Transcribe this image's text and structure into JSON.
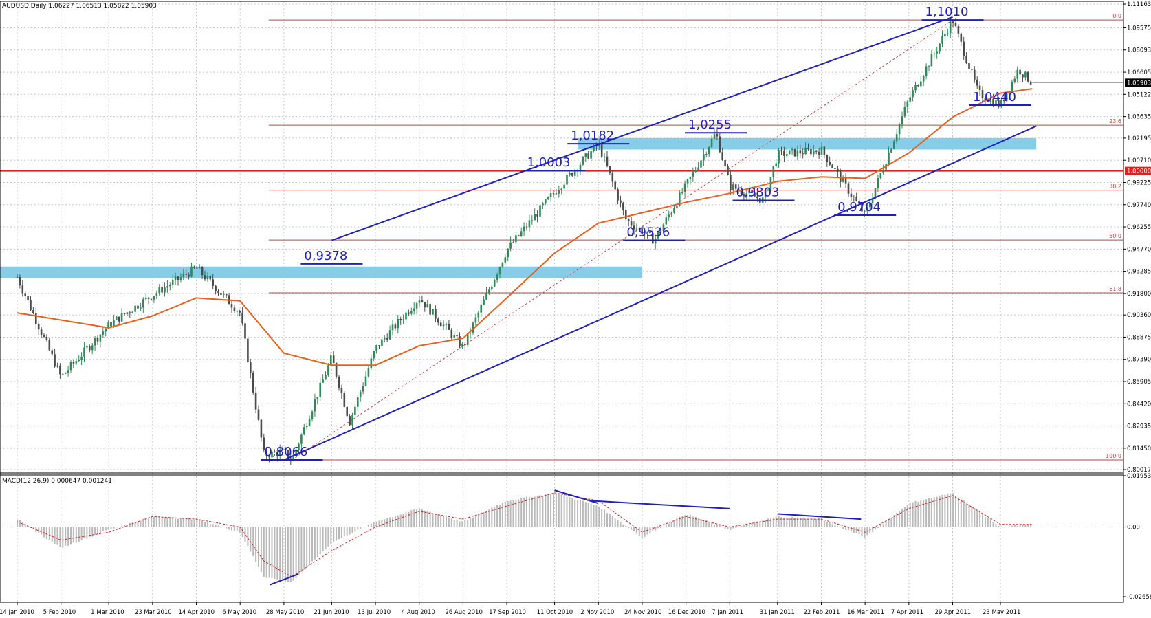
{
  "header": {
    "symbol_info": "AUDUSD,Daily  1.06227 1.06513 1.05822 1.05903",
    "macd_info": "MACD(12,26,9) 0.000647 0.001241"
  },
  "colors": {
    "bull_candle": "#2e8b57",
    "bear_candle": "#4b4b4b",
    "moving_average": "#e8601c",
    "channel": "#1f1fbf",
    "zone": "#87cde8",
    "fib": "#c84040",
    "parity": "#e02020",
    "macd_hist": "#b9b9b9",
    "macd_signal": "#d02020",
    "annotation": "#1f1fbf"
  },
  "chart_data": [
    {
      "type": "candlestick",
      "title": "",
      "instrument": "AUDUSD",
      "timeframe": "Daily",
      "last_bar": {
        "open": 1.06227,
        "high": 1.06513,
        "low": 1.05822,
        "close": 1.05903
      },
      "ylim": [
        0.80017,
        1.11163
      ],
      "y_tick_labels": [
        "1.11163",
        "1.09575",
        "1.08093",
        "1.06605",
        "1.05122",
        "1.03635",
        "1.02195",
        "1.00710",
        "0.99225",
        "0.97740",
        "0.96255",
        "0.94770",
        "0.93285",
        "0.91800",
        "0.90360",
        "0.88875",
        "0.87390",
        "0.85905",
        "0.84420",
        "0.82935",
        "0.81450",
        "0.80017"
      ],
      "current_price_label": "1.05903",
      "x_tick_labels": [
        "14 Jan 2010",
        "5 Feb 2010",
        "1 Mar 2010",
        "23 Mar 2010",
        "14 Apr 2010",
        "6 May 2010",
        "28 May 2010",
        "21 Jun 2010",
        "13 Jul 2010",
        "4 Aug 2010",
        "26 Aug 2010",
        "17 Sep 2010",
        "11 Oct 2010",
        "2 Nov 2010",
        "24 Nov 2010",
        "16 Dec 2010",
        "7 Jan 2011",
        "31 Jan 2011",
        "22 Feb 2011",
        "16 Mar 2011",
        "7 Apr 2011",
        "29 Apr 2011",
        "23 May 2011"
      ],
      "trend_path": [
        {
          "date": "14 Jan 2010",
          "price": 0.929
        },
        {
          "date": "5 Feb 2010",
          "price": 0.862
        },
        {
          "date": "1 Mar 2010",
          "price": 0.897
        },
        {
          "date": "23 Mar 2010",
          "price": 0.917
        },
        {
          "date": "14 Apr 2010",
          "price": 0.935
        },
        {
          "date": "6 May 2010",
          "price": 0.905
        },
        {
          "date": "18 May 2010",
          "price": 0.81
        },
        {
          "date": "28 May 2010",
          "price": 0.812
        },
        {
          "date": "1 Jun 2010",
          "price": 0.8066
        },
        {
          "date": "21 Jun 2010",
          "price": 0.875
        },
        {
          "date": "30 Jun 2010",
          "price": 0.832
        },
        {
          "date": "13 Jul 2010",
          "price": 0.881
        },
        {
          "date": "4 Aug 2010",
          "price": 0.915
        },
        {
          "date": "26 Aug 2010",
          "price": 0.882
        },
        {
          "date": "17 Sep 2010",
          "price": 0.947
        },
        {
          "date": "11 Oct 2010",
          "price": 0.986
        },
        {
          "date": "2 Nov 2010",
          "price": 1.0182
        },
        {
          "date": "16 Nov 2010",
          "price": 0.967
        },
        {
          "date": "30 Nov 2010",
          "price": 0.9536
        },
        {
          "date": "16 Dec 2010",
          "price": 0.99
        },
        {
          "date": "31 Dec 2010",
          "price": 1.0255
        },
        {
          "date": "7 Jan 2011",
          "price": 0.99
        },
        {
          "date": "24 Jan 2011",
          "price": 0.9803
        },
        {
          "date": "31 Jan 2011",
          "price": 1.011
        },
        {
          "date": "22 Feb 2011",
          "price": 1.014
        },
        {
          "date": "16 Mar 2011",
          "price": 0.9704
        },
        {
          "date": "7 Apr 2011",
          "price": 1.048
        },
        {
          "date": "29 Apr 2011",
          "price": 1.101
        },
        {
          "date": "12 May 2011",
          "price": 1.052
        },
        {
          "date": "23 May 2011",
          "price": 1.044
        },
        {
          "date": "1 Jun 2011",
          "price": 1.068
        },
        {
          "date": "8 Jun 2011",
          "price": 1.05903
        }
      ],
      "moving_average": [
        {
          "date": "14 Jan 2010",
          "price": 0.905
        },
        {
          "date": "1 Mar 2010",
          "price": 0.895
        },
        {
          "date": "23 Mar 2010",
          "price": 0.903
        },
        {
          "date": "14 Apr 2010",
          "price": 0.915
        },
        {
          "date": "6 May 2010",
          "price": 0.913
        },
        {
          "date": "28 May 2010",
          "price": 0.878
        },
        {
          "date": "21 Jun 2010",
          "price": 0.87
        },
        {
          "date": "13 Jul 2010",
          "price": 0.87
        },
        {
          "date": "4 Aug 2010",
          "price": 0.883
        },
        {
          "date": "26 Aug 2010",
          "price": 0.888
        },
        {
          "date": "17 Sep 2010",
          "price": 0.915
        },
        {
          "date": "11 Oct 2010",
          "price": 0.945
        },
        {
          "date": "2 Nov 2010",
          "price": 0.965
        },
        {
          "date": "24 Nov 2010",
          "price": 0.972
        },
        {
          "date": "16 Dec 2010",
          "price": 0.979
        },
        {
          "date": "7 Jan 2011",
          "price": 0.985
        },
        {
          "date": "31 Jan 2011",
          "price": 0.993
        },
        {
          "date": "22 Feb 2011",
          "price": 0.996
        },
        {
          "date": "16 Mar 2011",
          "price": 0.995
        },
        {
          "date": "7 Apr 2011",
          "price": 1.012
        },
        {
          "date": "29 Apr 2011",
          "price": 1.036
        },
        {
          "date": "23 May 2011",
          "price": 1.052
        },
        {
          "date": "8 Jun 2011",
          "price": 1.055
        }
      ],
      "fibonacci": [
        {
          "level": "0.0",
          "price": 1.101
        },
        {
          "level": "23.6",
          "price": 1.0306
        },
        {
          "level": "38.2",
          "price": 0.9871
        },
        {
          "level": "50.0",
          "price": 0.9538
        },
        {
          "level": "61.8",
          "price": 0.9184
        },
        {
          "level": "100.0",
          "price": 0.8066
        }
      ],
      "parity_line": {
        "price": 1.0,
        "label": "1.00000"
      },
      "zones": [
        {
          "from": "14 Jan 2010",
          "to": "24 Nov 2010",
          "low": 0.932,
          "high": 0.936
        },
        {
          "from": "2 Nov 2010",
          "to": "10 Jun 2011",
          "low": 1.018,
          "high": 1.022
        }
      ],
      "channel_lines": [
        {
          "from": {
            "date": "28 May 2010",
            "price": 0.8066
          },
          "to": {
            "date": "10 Jun 2011",
            "price": 1.03
          }
        },
        {
          "from": {
            "date": "21 Jun 2010",
            "price": 0.9535
          },
          "to": {
            "date": "29 Apr 2011",
            "price": 1.103
          }
        }
      ],
      "annotations": [
        {
          "text": "1,1010",
          "date": "29 Apr 2011",
          "price": 1.101
        },
        {
          "text": "1,0255",
          "date": "31 Dec 2010",
          "price": 1.0255
        },
        {
          "text": "1,0182",
          "date": "2 Nov 2010",
          "price": 1.0182
        },
        {
          "text": "1,0003",
          "date": "11 Oct 2010",
          "price": 1.0003
        },
        {
          "text": "0,9803",
          "date": "24 Jan 2011",
          "price": 0.9803
        },
        {
          "text": "0,9704",
          "date": "16 Mar 2011",
          "price": 0.9704
        },
        {
          "text": "0,9536",
          "date": "30 Nov 2010",
          "price": 0.9536
        },
        {
          "text": "0,9378",
          "date": "21 Jun 2010",
          "price": 0.9378
        },
        {
          "text": "0,8066",
          "date": "1 Jun 2010",
          "price": 0.8066
        },
        {
          "text": "1,0440",
          "date": "23 May 2011",
          "price": 1.044
        }
      ]
    },
    {
      "type": "histogram",
      "title": "MACD(12,26,9)",
      "ylim": [
        -0.02658,
        0.019537
      ],
      "y_tick_labels": [
        "0.019537",
        "0.00",
        "-0.02658"
      ],
      "macd_values": [
        {
          "date": "14 Jan 2010",
          "value": 0.003
        },
        {
          "date": "5 Feb 2010",
          "value": -0.008
        },
        {
          "date": "1 Mar 2010",
          "value": -0.001
        },
        {
          "date": "23 Mar 2010",
          "value": 0.004
        },
        {
          "date": "14 Apr 2010",
          "value": 0.003
        },
        {
          "date": "6 May 2010",
          "value": -0.002
        },
        {
          "date": "18 May 2010",
          "value": -0.019
        },
        {
          "date": "1 Jun 2010",
          "value": -0.021
        },
        {
          "date": "21 Jun 2010",
          "value": -0.006
        },
        {
          "date": "13 Jul 2010",
          "value": 0.002
        },
        {
          "date": "4 Aug 2010",
          "value": 0.007
        },
        {
          "date": "26 Aug 2010",
          "value": 0.002
        },
        {
          "date": "17 Sep 2010",
          "value": 0.01
        },
        {
          "date": "11 Oct 2010",
          "value": 0.013
        },
        {
          "date": "2 Nov 2010",
          "value": 0.008
        },
        {
          "date": "24 Nov 2010",
          "value": -0.004
        },
        {
          "date": "16 Dec 2010",
          "value": 0.005
        },
        {
          "date": "7 Jan 2011",
          "value": -0.001
        },
        {
          "date": "31 Jan 2011",
          "value": 0.004
        },
        {
          "date": "22 Feb 2011",
          "value": 0.003
        },
        {
          "date": "16 Mar 2011",
          "value": -0.004
        },
        {
          "date": "7 Apr 2011",
          "value": 0.009
        },
        {
          "date": "29 Apr 2011",
          "value": 0.013
        },
        {
          "date": "23 May 2011",
          "value": 0.0
        },
        {
          "date": "8 Jun 2011",
          "value": 0.001
        }
      ],
      "signal_values": [
        {
          "date": "14 Jan 2010",
          "value": 0.002
        },
        {
          "date": "5 Feb 2010",
          "value": -0.005
        },
        {
          "date": "1 Mar 2010",
          "value": -0.002
        },
        {
          "date": "23 Mar 2010",
          "value": 0.004
        },
        {
          "date": "14 Apr 2010",
          "value": 0.003
        },
        {
          "date": "6 May 2010",
          "value": 0.0
        },
        {
          "date": "18 May 2010",
          "value": -0.013
        },
        {
          "date": "1 Jun 2010",
          "value": -0.019
        },
        {
          "date": "21 Jun 2010",
          "value": -0.009
        },
        {
          "date": "13 Jul 2010",
          "value": 0.0
        },
        {
          "date": "4 Aug 2010",
          "value": 0.006
        },
        {
          "date": "26 Aug 2010",
          "value": 0.003
        },
        {
          "date": "17 Sep 2010",
          "value": 0.008
        },
        {
          "date": "11 Oct 2010",
          "value": 0.013
        },
        {
          "date": "2 Nov 2010",
          "value": 0.01
        },
        {
          "date": "24 Nov 2010",
          "value": -0.002
        },
        {
          "date": "16 Dec 2010",
          "value": 0.004
        },
        {
          "date": "7 Jan 2011",
          "value": 0.0
        },
        {
          "date": "31 Jan 2011",
          "value": 0.003
        },
        {
          "date": "22 Feb 2011",
          "value": 0.003
        },
        {
          "date": "16 Mar 2011",
          "value": -0.002
        },
        {
          "date": "7 Apr 2011",
          "value": 0.007
        },
        {
          "date": "29 Apr 2011",
          "value": 0.012
        },
        {
          "date": "23 May 2011",
          "value": 0.001
        },
        {
          "date": "8 Jun 2011",
          "value": 0.001
        }
      ],
      "divergence_lines": [
        {
          "from": {
            "date": "21 May 2010",
            "value": -0.022
          },
          "to": {
            "date": "4 Jun 2010",
            "value": -0.018
          }
        },
        {
          "from": {
            "date": "11 Oct 2010",
            "value": 0.014
          },
          "to": {
            "date": "2 Nov 2010",
            "value": 0.009
          }
        },
        {
          "from": {
            "date": "29 Oct 2010",
            "value": 0.01
          },
          "to": {
            "date": "7 Jan 2011",
            "value": 0.007
          }
        },
        {
          "from": {
            "date": "31 Jan 2011",
            "value": 0.005
          },
          "to": {
            "date": "14 Mar 2011",
            "value": 0.003
          }
        }
      ]
    }
  ]
}
